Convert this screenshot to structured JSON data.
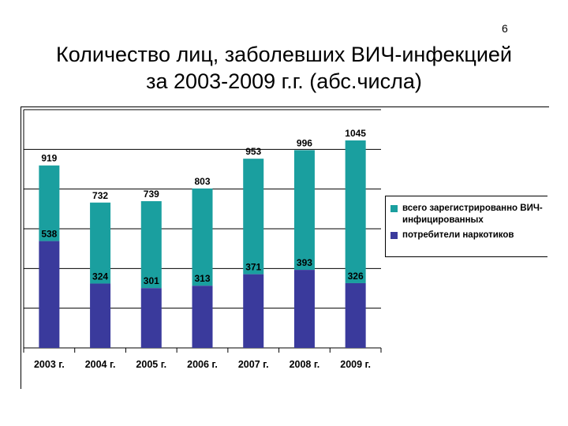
{
  "slide": {
    "page_number": "6",
    "title_line1": "Количество лиц, заболевших ВИЧ-инфекцией",
    "title_line2": "за 2003-2009 г.г. (абс.числа)"
  },
  "chart_data": {
    "type": "bar",
    "categories": [
      "2003 г.",
      "2004 г.",
      "2005 г.",
      "2006 г.",
      "2007 г.",
      "2008 г.",
      "2009 г."
    ],
    "series": [
      {
        "name": "всего зарегистрированно ВИЧ-инфицированных",
        "values": [
          919,
          732,
          739,
          803,
          953,
          996,
          1045
        ],
        "color": "#1a9f9f"
      },
      {
        "name": "потребители наркотиков",
        "values": [
          538,
          324,
          301,
          313,
          371,
          393,
          326
        ],
        "color": "#3a3a9c"
      }
    ],
    "ylim": [
      0,
      1200
    ],
    "grid": true,
    "legend_position": "right"
  }
}
